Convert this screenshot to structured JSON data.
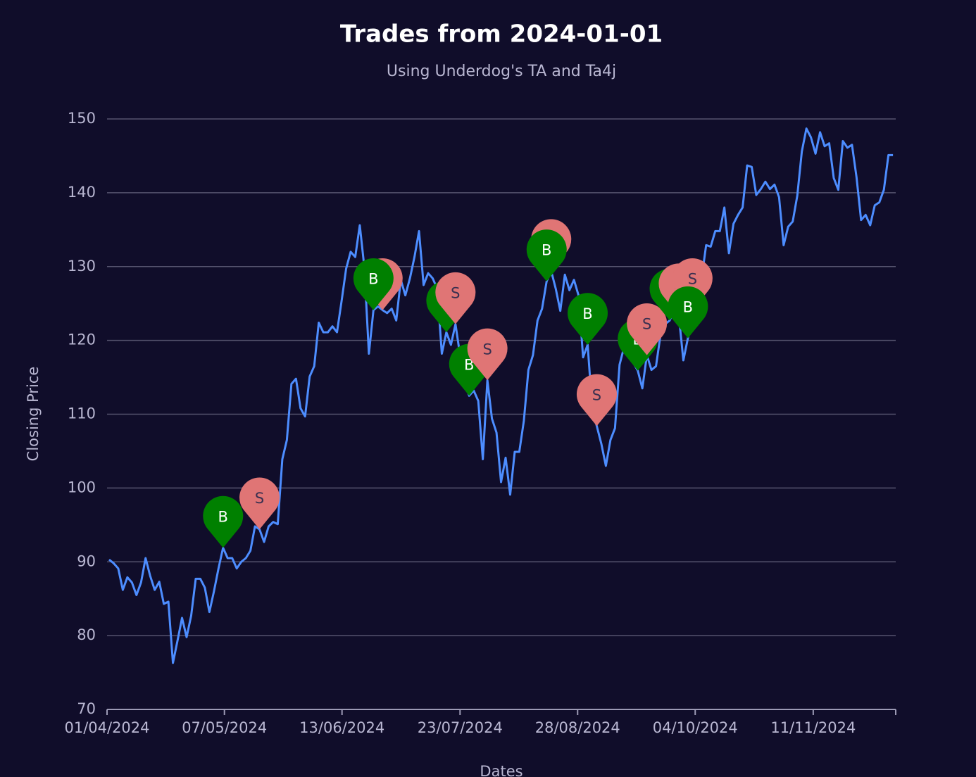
{
  "chart_data": {
    "type": "line",
    "title": "Trades from 2024-01-01",
    "subtitle": "Using Underdog's TA and Ta4j",
    "x_label": "Dates",
    "y_label": "Closing Price",
    "xlim": [
      -0.46,
      172.6
    ],
    "xticks": [
      {
        "value": -0.46,
        "label": "01/04/2024"
      },
      {
        "value": 25.3,
        "label": "07/05/2024"
      },
      {
        "value": 51.1,
        "label": "13/06/2024"
      },
      {
        "value": 77.0,
        "label": "23/07/2024"
      },
      {
        "value": 102.8,
        "label": "28/08/2024"
      },
      {
        "value": 128.6,
        "label": "04/10/2024"
      },
      {
        "value": 154.5,
        "label": "11/11/2024"
      }
    ],
    "ylim": [
      70,
      150
    ],
    "yticks": [
      70,
      80,
      90,
      100,
      110,
      120,
      130,
      140,
      150
    ],
    "grid": true,
    "series": [
      {
        "color": "#4d8dff",
        "values": [
          90.3,
          89.8,
          89.1,
          86.2,
          87.9,
          87.2,
          85.5,
          87.2,
          90.5,
          88.1,
          86.2,
          87.3,
          84.3,
          84.6,
          76.3,
          79.3,
          82.4,
          79.8,
          82.7,
          87.7,
          87.7,
          86.5,
          83.2,
          86.0,
          89.1,
          91.9,
          90.5,
          90.5,
          89.1,
          90.0,
          90.5,
          91.5,
          94.8,
          94.4,
          92.7,
          94.8,
          95.4,
          95.1,
          103.9,
          106.5,
          114.1,
          114.8,
          110.8,
          109.7,
          115.1,
          116.5,
          122.4,
          121.1,
          121.1,
          121.9,
          121.1,
          125.3,
          129.7,
          132.0,
          131.3,
          135.6,
          129.9,
          118.2,
          124.1,
          124.6,
          124.1,
          123.7,
          124.3,
          122.7,
          128.2,
          126.1,
          128.4,
          131.3,
          134.8,
          127.5,
          129.1,
          128.4,
          127.0,
          118.2,
          121.1,
          119.4,
          122.2,
          118.0,
          114.6,
          112.5,
          113.2,
          111.8,
          103.9,
          114.6,
          109.4,
          107.5,
          100.8,
          104.1,
          99.1,
          104.9,
          104.9,
          109.1,
          116.0,
          118.0,
          122.7,
          124.3,
          128.0,
          129.4,
          127.0,
          124.0,
          128.9,
          126.8,
          128.2,
          126.1,
          117.7,
          119.4,
          110.8,
          108.4,
          106.0,
          103.0,
          106.5,
          108.1,
          116.7,
          119.1,
          119.1,
          117.0,
          115.9,
          113.5,
          118.0,
          116.0,
          116.5,
          120.8,
          122.2,
          122.7,
          124.1,
          123.4,
          117.3,
          120.3,
          124.1,
          126.1,
          128.4,
          132.9,
          132.7,
          134.8,
          134.8,
          138.0,
          131.8,
          135.8,
          137.0,
          138.0,
          143.7,
          143.5,
          139.7,
          140.5,
          141.5,
          140.5,
          141.1,
          139.4,
          132.9,
          135.4,
          136.1,
          139.6,
          145.6,
          148.7,
          147.5,
          145.3,
          148.2,
          146.3,
          146.7,
          142.0,
          140.4,
          147.0,
          146.1,
          146.5,
          142.1,
          136.3,
          137.0,
          135.6,
          138.3,
          138.7,
          140.4,
          145.1,
          145.1
        ]
      }
    ],
    "markers": [
      {
        "label": "B",
        "x": 25
      },
      {
        "label": "S",
        "x": 33
      },
      {
        "label": "S",
        "x": 60
      },
      {
        "label": "B",
        "x": 58
      },
      {
        "label": "B",
        "x": 74
      },
      {
        "label": "S",
        "x": 76
      },
      {
        "label": "B",
        "x": 79
      },
      {
        "label": "S",
        "x": 83
      },
      {
        "label": "S",
        "x": 97
      },
      {
        "label": "B",
        "x": 96
      },
      {
        "label": "B",
        "x": 105
      },
      {
        "label": "S",
        "x": 107
      },
      {
        "label": "B",
        "x": 116
      },
      {
        "label": "S",
        "x": 118
      },
      {
        "label": "B",
        "x": 123
      },
      {
        "label": "S",
        "x": 125
      },
      {
        "label": "S",
        "x": 128
      },
      {
        "label": "B",
        "x": 127
      }
    ],
    "marker_colors": {
      "B": "#008000",
      "S": "#e07575"
    },
    "marker_text_colors": {
      "B": "#ffffff",
      "S": "#3a3050"
    }
  }
}
